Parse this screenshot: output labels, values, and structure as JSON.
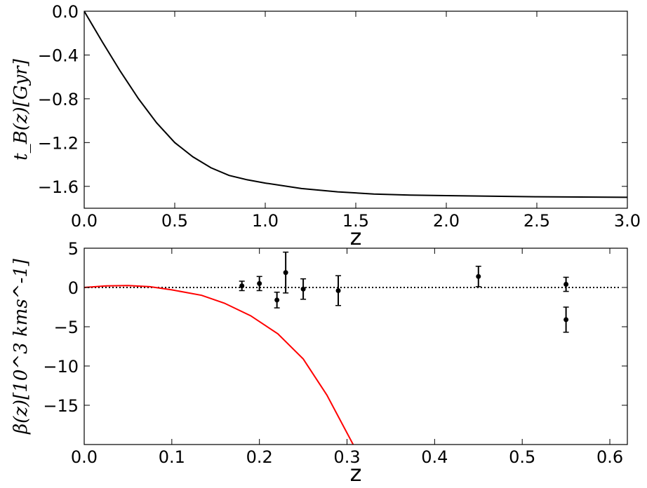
{
  "chart_data": [
    {
      "type": "line",
      "xlabel": "z",
      "ylabel": "t_B(z)[Gyr]",
      "color": "#000000",
      "x": [
        0,
        0.1,
        0.2,
        0.3,
        0.4,
        0.5,
        0.6,
        0.7,
        0.8,
        0.9,
        1.0,
        1.2,
        1.4,
        1.6,
        1.8,
        2.0,
        2.5,
        3.0
      ],
      "values": [
        0,
        -0.28,
        -0.55,
        -0.8,
        -1.02,
        -1.2,
        -1.33,
        -1.43,
        -1.5,
        -1.54,
        -1.57,
        -1.62,
        -1.65,
        -1.67,
        -1.68,
        -1.685,
        -1.695,
        -1.7
      ],
      "xlim": [
        0,
        3
      ],
      "ylim": [
        -1.8,
        0
      ],
      "xticks": [
        {
          "value": 0,
          "label": "0.0"
        },
        {
          "value": 0.5,
          "label": "0.5"
        },
        {
          "value": 1,
          "label": "1.0"
        },
        {
          "value": 1.5,
          "label": "1.5"
        },
        {
          "value": 2,
          "label": "2.0"
        },
        {
          "value": 2.5,
          "label": "2.5"
        },
        {
          "value": 3,
          "label": "3.0"
        }
      ],
      "yticks": [
        {
          "value": 0,
          "label": "0.0"
        },
        {
          "value": -0.4,
          "label": "−0.4"
        },
        {
          "value": -0.8,
          "label": "−0.8"
        },
        {
          "value": -1.2,
          "label": "−1.2"
        },
        {
          "value": -1.6,
          "label": "−1.6"
        }
      ]
    },
    {
      "type": "line",
      "xlabel": "z",
      "ylabel": "β(z)[10^3 kms^-1]",
      "color": "#ff0000",
      "x": [
        0,
        0.025,
        0.05,
        0.075,
        0.1,
        0.134,
        0.16,
        0.19,
        0.221,
        0.25,
        0.277,
        0.307
      ],
      "values": [
        0,
        0.2,
        0.25,
        0.1,
        -0.3,
        -1.0,
        -2.0,
        -3.6,
        -5.9,
        -9.1,
        -13.7,
        -20
      ],
      "hline": 0,
      "errorbars": {
        "color": "#000000",
        "x": [
          0.18,
          0.2,
          0.22,
          0.23,
          0.25,
          0.29,
          0.45,
          0.55,
          0.55
        ],
        "values": [
          0.2,
          0.5,
          -1.6,
          1.9,
          -0.2,
          -0.4,
          1.4,
          0.4,
          -4.1
        ],
        "errors": [
          0.6,
          0.9,
          1.0,
          2.6,
          1.3,
          1.9,
          1.3,
          0.9,
          1.6
        ]
      },
      "xlim": [
        0,
        0.62
      ],
      "ylim": [
        -20,
        5
      ],
      "xticks": [
        {
          "value": 0,
          "label": "0.0"
        },
        0.1,
        0.2,
        0.3,
        0.4,
        0.5,
        0.6
      ],
      "yticks": [
        5,
        0,
        {
          "value": -5,
          "label": "−5"
        },
        {
          "value": -10,
          "label": "−10"
        },
        {
          "value": -15,
          "label": "−15"
        }
      ]
    }
  ]
}
